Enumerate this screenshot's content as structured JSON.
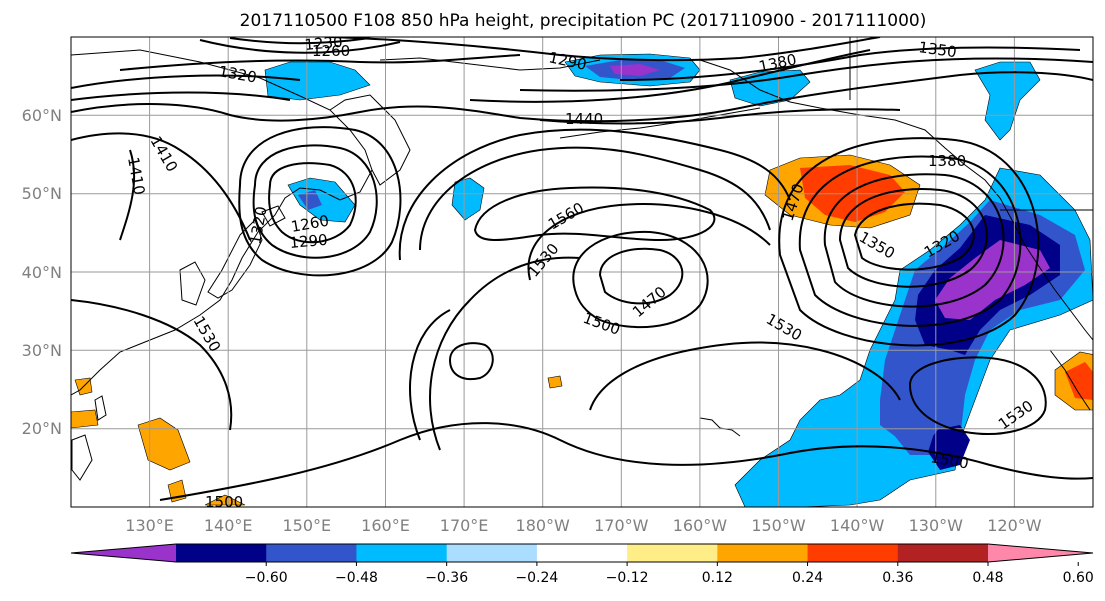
{
  "title": "2017110500 F108 850 hPa height, precipitation PC (2017110900 - 2017111000)",
  "map": {
    "lon_labels": [
      "130°E",
      "140°E",
      "150°E",
      "160°E",
      "170°E",
      "180°W",
      "170°W",
      "160°W",
      "150°W",
      "140°W",
      "130°W",
      "120°W"
    ],
    "lat_labels": [
      "60°N",
      "50°N",
      "40°N",
      "30°N",
      "20°N"
    ],
    "lon_range": [
      120,
      250
    ],
    "lat_range": [
      10,
      70
    ],
    "grid": true
  },
  "contour_labels": {
    "h1230": "1230",
    "h1260": "1260",
    "h1320": "1320",
    "h1290a": "1290",
    "h1380": "1380",
    "h1350a": "1350",
    "h1440": "1440",
    "h1410a": "1410",
    "h1410b": "1410",
    "h1470a": "1470",
    "h1380b": "1380",
    "h1560a": "1560",
    "h1530a": "1530",
    "h1320b": "1320",
    "h1260b": "1260",
    "h1290b": "1290",
    "h1350b": "1350",
    "h1320c": "1320",
    "h1470b": "1470",
    "h1500a": "1500",
    "h1530b": "1530",
    "h1530c": "1530",
    "h1530d": "1530",
    "h1500b": "1500",
    "h1500c": "1500"
  },
  "colorbar": {
    "ticks": [
      "−0.60",
      "−0.48",
      "−0.36",
      "−0.24",
      "−0.12",
      "0.12",
      "0.24",
      "0.36",
      "0.48",
      "0.60"
    ],
    "colors": [
      "#9933cc",
      "#000088",
      "#3355cc",
      "#00bbff",
      "#aaddff",
      "#ffffff",
      "#ffee88",
      "#ffa500",
      "#ff3d00",
      "#b22222",
      "#ff88aa"
    ]
  }
}
